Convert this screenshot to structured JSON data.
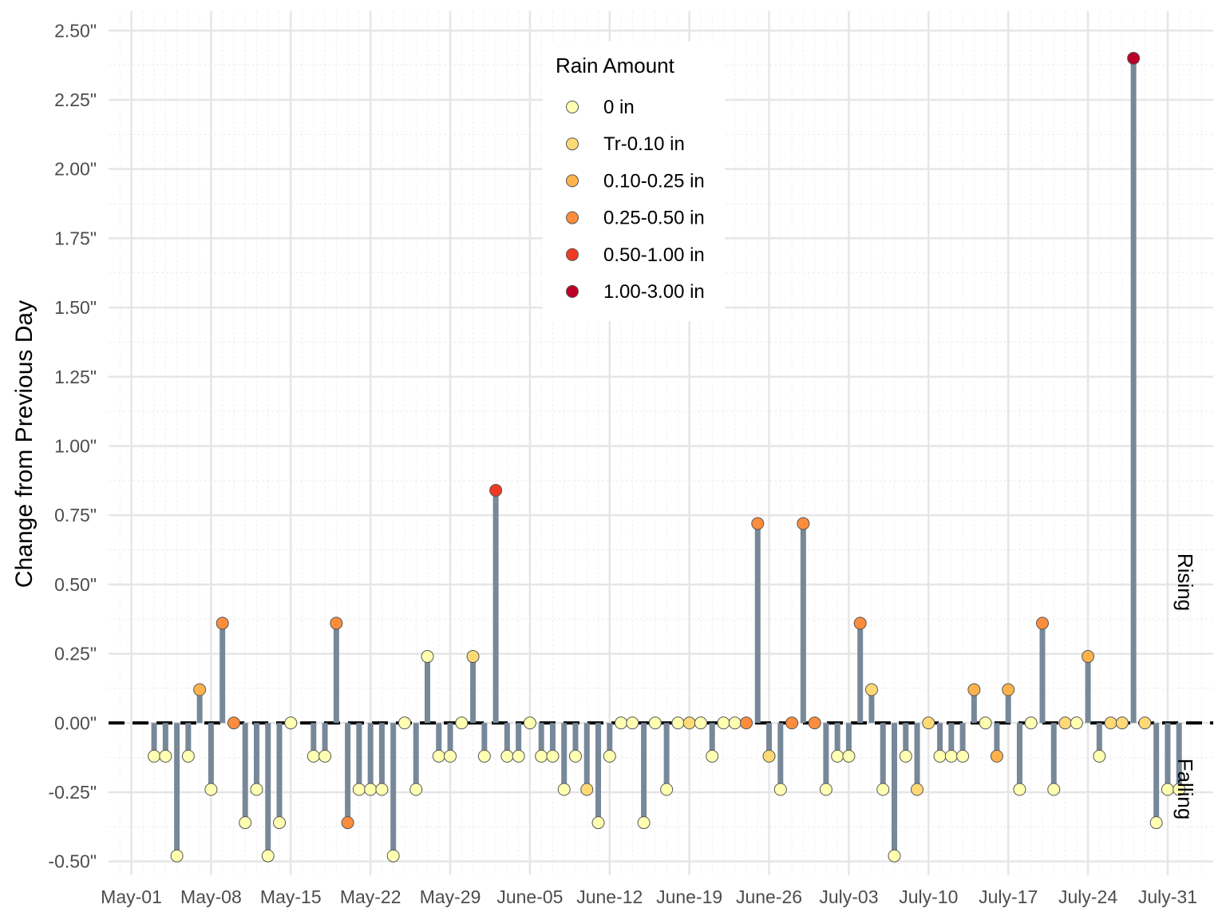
{
  "chart_data": {
    "type": "lollipop",
    "ylabel": "Change from Previous Day",
    "ylim": [
      -0.55,
      2.57
    ],
    "yticks": [
      -0.5,
      -0.25,
      0,
      0.25,
      0.5,
      0.75,
      1.0,
      1.25,
      1.5,
      1.75,
      2.0,
      2.25,
      2.5
    ],
    "ytick_labels": [
      "-0.50\"",
      "-0.25\"",
      "0.00\"",
      "0.25\"",
      "0.50\"",
      "0.75\"",
      "1.00\"",
      "1.25\"",
      "1.50\"",
      "1.75\"",
      "2.00\"",
      "2.25\"",
      "2.50\""
    ],
    "xticks": [
      "2022-05-01",
      "2022-05-08",
      "2022-05-15",
      "2022-05-22",
      "2022-05-29",
      "2022-06-05",
      "2022-06-12",
      "2022-06-19",
      "2022-06-26",
      "2022-07-03",
      "2022-07-10",
      "2022-07-17",
      "2022-07-24",
      "2022-07-31"
    ],
    "xtick_labels": [
      "May-01",
      "May-08",
      "May-15",
      "May-22",
      "May-29",
      "June-05",
      "June-12",
      "June-19",
      "June-26",
      "July-03",
      "July-10",
      "July-17",
      "July-24",
      "July-31"
    ],
    "xlim": [
      "2022-04-29",
      "2022-08-04"
    ],
    "grid": true,
    "zero_line": "dashed",
    "side_labels": {
      "rising": "Rising",
      "falling": "Falling"
    },
    "legend": {
      "title": "Rain Amount",
      "position": "top-center",
      "entries": [
        {
          "label": "0 in",
          "color": "#FFFFB2"
        },
        {
          "label": "Tr-0.10 in",
          "color": "#FED976"
        },
        {
          "label": "0.10-0.25 in",
          "color": "#FEB24C"
        },
        {
          "label": "0.25-0.50 in",
          "color": "#FD8D3C"
        },
        {
          "label": "0.50-1.00 in",
          "color": "#F03B20"
        },
        {
          "label": "1.00-3.00 in",
          "color": "#BD0026"
        }
      ]
    },
    "stem_color": "#778899",
    "points": [
      {
        "date": "2022-05-03",
        "value": -0.12,
        "rain": 0
      },
      {
        "date": "2022-05-04",
        "value": -0.12,
        "rain": 0
      },
      {
        "date": "2022-05-05",
        "value": -0.48,
        "rain": 0
      },
      {
        "date": "2022-05-06",
        "value": -0.12,
        "rain": 0
      },
      {
        "date": "2022-05-07",
        "value": 0.12,
        "rain": 2
      },
      {
        "date": "2022-05-08",
        "value": -0.24,
        "rain": 0
      },
      {
        "date": "2022-05-09",
        "value": 0.36,
        "rain": 3
      },
      {
        "date": "2022-05-10",
        "value": 0.0,
        "rain": 3
      },
      {
        "date": "2022-05-11",
        "value": -0.36,
        "rain": 0
      },
      {
        "date": "2022-05-12",
        "value": -0.24,
        "rain": 0
      },
      {
        "date": "2022-05-13",
        "value": -0.48,
        "rain": 0
      },
      {
        "date": "2022-05-14",
        "value": -0.36,
        "rain": 0
      },
      {
        "date": "2022-05-15",
        "value": 0.0,
        "rain": 0
      },
      {
        "date": "2022-05-17",
        "value": -0.12,
        "rain": 0
      },
      {
        "date": "2022-05-18",
        "value": -0.12,
        "rain": 0
      },
      {
        "date": "2022-05-19",
        "value": 0.36,
        "rain": 3
      },
      {
        "date": "2022-05-20",
        "value": -0.36,
        "rain": 3
      },
      {
        "date": "2022-05-21",
        "value": -0.24,
        "rain": 0
      },
      {
        "date": "2022-05-22",
        "value": -0.24,
        "rain": 0
      },
      {
        "date": "2022-05-23",
        "value": -0.24,
        "rain": 0
      },
      {
        "date": "2022-05-24",
        "value": -0.48,
        "rain": 0
      },
      {
        "date": "2022-05-25",
        "value": 0.0,
        "rain": 0
      },
      {
        "date": "2022-05-26",
        "value": -0.24,
        "rain": 0
      },
      {
        "date": "2022-05-27",
        "value": 0.24,
        "rain": 0
      },
      {
        "date": "2022-05-28",
        "value": -0.12,
        "rain": 0
      },
      {
        "date": "2022-05-29",
        "value": -0.12,
        "rain": 0
      },
      {
        "date": "2022-05-30",
        "value": 0.0,
        "rain": 0
      },
      {
        "date": "2022-05-31",
        "value": 0.24,
        "rain": 1
      },
      {
        "date": "2022-06-01",
        "value": -0.12,
        "rain": 0
      },
      {
        "date": "2022-06-02",
        "value": 0.84,
        "rain": 4
      },
      {
        "date": "2022-06-03",
        "value": -0.12,
        "rain": 0
      },
      {
        "date": "2022-06-04",
        "value": -0.12,
        "rain": 0
      },
      {
        "date": "2022-06-05",
        "value": 0.0,
        "rain": 0
      },
      {
        "date": "2022-06-06",
        "value": -0.12,
        "rain": 0
      },
      {
        "date": "2022-06-07",
        "value": -0.12,
        "rain": 0
      },
      {
        "date": "2022-06-08",
        "value": -0.24,
        "rain": 0
      },
      {
        "date": "2022-06-09",
        "value": -0.12,
        "rain": 0
      },
      {
        "date": "2022-06-10",
        "value": -0.24,
        "rain": 1
      },
      {
        "date": "2022-06-11",
        "value": -0.36,
        "rain": 0
      },
      {
        "date": "2022-06-12",
        "value": -0.12,
        "rain": 0
      },
      {
        "date": "2022-06-13",
        "value": 0.0,
        "rain": 0
      },
      {
        "date": "2022-06-14",
        "value": 0.0,
        "rain": 0
      },
      {
        "date": "2022-06-15",
        "value": -0.36,
        "rain": 0
      },
      {
        "date": "2022-06-16",
        "value": 0.0,
        "rain": 0
      },
      {
        "date": "2022-06-17",
        "value": -0.24,
        "rain": 0
      },
      {
        "date": "2022-06-18",
        "value": 0.0,
        "rain": 0
      },
      {
        "date": "2022-06-19",
        "value": 0.0,
        "rain": 1
      },
      {
        "date": "2022-06-20",
        "value": 0.0,
        "rain": 0
      },
      {
        "date": "2022-06-21",
        "value": -0.12,
        "rain": 0
      },
      {
        "date": "2022-06-22",
        "value": 0.0,
        "rain": 0
      },
      {
        "date": "2022-06-23",
        "value": 0.0,
        "rain": 0
      },
      {
        "date": "2022-06-24",
        "value": 0.0,
        "rain": 3
      },
      {
        "date": "2022-06-25",
        "value": 0.72,
        "rain": 3
      },
      {
        "date": "2022-06-26",
        "value": -0.12,
        "rain": 1
      },
      {
        "date": "2022-06-27",
        "value": -0.24,
        "rain": 0
      },
      {
        "date": "2022-06-28",
        "value": 0.0,
        "rain": 3
      },
      {
        "date": "2022-06-29",
        "value": 0.72,
        "rain": 3
      },
      {
        "date": "2022-06-30",
        "value": 0.0,
        "rain": 3
      },
      {
        "date": "2022-07-01",
        "value": -0.24,
        "rain": 0
      },
      {
        "date": "2022-07-02",
        "value": -0.12,
        "rain": 0
      },
      {
        "date": "2022-07-03",
        "value": -0.12,
        "rain": 0
      },
      {
        "date": "2022-07-04",
        "value": 0.36,
        "rain": 3
      },
      {
        "date": "2022-07-05",
        "value": 0.12,
        "rain": 1
      },
      {
        "date": "2022-07-06",
        "value": -0.24,
        "rain": 0
      },
      {
        "date": "2022-07-07",
        "value": -0.48,
        "rain": 0
      },
      {
        "date": "2022-07-08",
        "value": -0.12,
        "rain": 0
      },
      {
        "date": "2022-07-09",
        "value": -0.24,
        "rain": 1
      },
      {
        "date": "2022-07-10",
        "value": 0.0,
        "rain": 1
      },
      {
        "date": "2022-07-11",
        "value": -0.12,
        "rain": 0
      },
      {
        "date": "2022-07-12",
        "value": -0.12,
        "rain": 0
      },
      {
        "date": "2022-07-13",
        "value": -0.12,
        "rain": 0
      },
      {
        "date": "2022-07-14",
        "value": 0.12,
        "rain": 2
      },
      {
        "date": "2022-07-15",
        "value": 0.0,
        "rain": 0
      },
      {
        "date": "2022-07-16",
        "value": -0.12,
        "rain": 2
      },
      {
        "date": "2022-07-17",
        "value": 0.12,
        "rain": 2
      },
      {
        "date": "2022-07-18",
        "value": -0.24,
        "rain": 0
      },
      {
        "date": "2022-07-19",
        "value": 0.0,
        "rain": 0
      },
      {
        "date": "2022-07-20",
        "value": 0.36,
        "rain": 3
      },
      {
        "date": "2022-07-21",
        "value": -0.24,
        "rain": 0
      },
      {
        "date": "2022-07-22",
        "value": 0.0,
        "rain": 1
      },
      {
        "date": "2022-07-23",
        "value": 0.0,
        "rain": 0
      },
      {
        "date": "2022-07-24",
        "value": 0.24,
        "rain": 2
      },
      {
        "date": "2022-07-25",
        "value": -0.12,
        "rain": 0
      },
      {
        "date": "2022-07-26",
        "value": 0.0,
        "rain": 1
      },
      {
        "date": "2022-07-27",
        "value": 0.0,
        "rain": 1
      },
      {
        "date": "2022-07-28",
        "value": 2.4,
        "rain": 5
      },
      {
        "date": "2022-07-29",
        "value": 0.0,
        "rain": 1
      },
      {
        "date": "2022-07-30",
        "value": -0.36,
        "rain": 0
      },
      {
        "date": "2022-07-31",
        "value": -0.24,
        "rain": 0
      },
      {
        "date": "2022-08-01",
        "value": -0.24,
        "rain": 0
      }
    ]
  }
}
